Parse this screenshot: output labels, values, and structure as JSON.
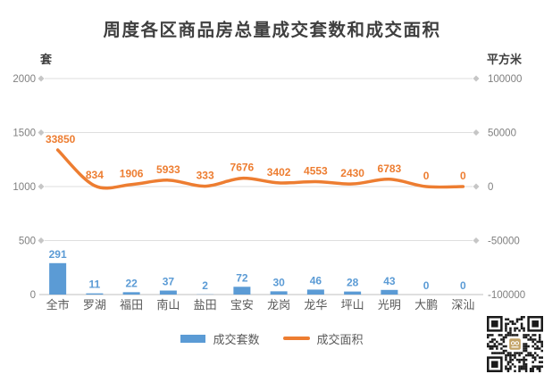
{
  "chart_data": {
    "type": "bar",
    "title": "周度各区商品房总量成交套数和成交面积",
    "left_axis": {
      "unit": "套",
      "min": 0,
      "max": 2000,
      "ticks": [
        "2000",
        "1500",
        "1000",
        "500",
        "0"
      ]
    },
    "right_axis": {
      "unit": "平方米",
      "min": -100000,
      "max": 100000,
      "ticks": [
        "100000",
        "50000",
        "0",
        "-50000",
        "-100000"
      ]
    },
    "categories": [
      "全市",
      "罗湖",
      "福田",
      "南山",
      "盐田",
      "宝安",
      "龙岗",
      "龙华",
      "坪山",
      "光明",
      "大鹏",
      "深汕"
    ],
    "series": [
      {
        "name": "成交套数",
        "type": "bar",
        "axis": "left",
        "color": "#5B9BD5",
        "values": [
          291,
          11,
          22,
          37,
          2,
          72,
          30,
          46,
          28,
          43,
          0,
          0
        ]
      },
      {
        "name": "成交面积",
        "type": "line",
        "axis": "right",
        "color": "#ED7D31",
        "values": [
          33850,
          834,
          1906,
          5933,
          333,
          7676,
          3402,
          4553,
          2430,
          6783,
          0,
          0
        ]
      }
    ],
    "grid": true,
    "legend_position": "bottom"
  },
  "colors": {
    "bar": "#5B9BD5",
    "line": "#ED7D31",
    "grid_line": "#dedede",
    "grid_marker": "#c6c6c6",
    "baseline": "#bfbfbf",
    "tick_text": "#808080",
    "category_text": "#595959",
    "title_text": "#3f3f3f"
  },
  "icons": {
    "qrcode": "qr-code"
  }
}
